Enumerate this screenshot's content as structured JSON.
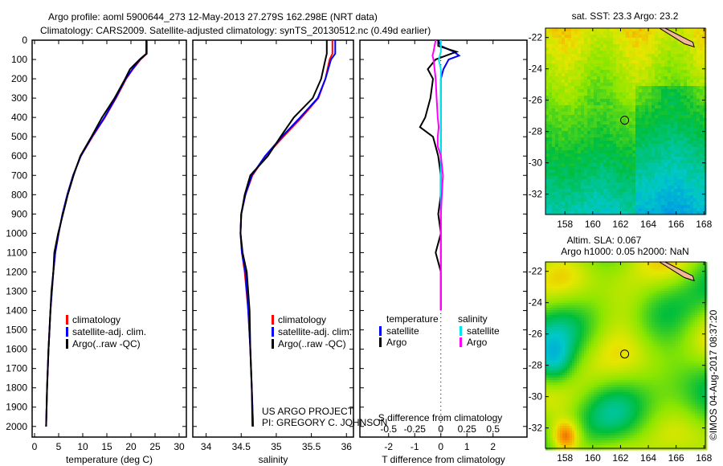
{
  "title": {
    "line1": "Argo profile: aoml 5900644_273 12-May-2013 27.279S 162.298E (NRT data)",
    "line2": "Climatology: CARS2009. Satellite-adjusted climatology: synTS_20130512.nc (0.49d earlier)"
  },
  "footer": {
    "project": "US ARGO PROJECT",
    "pi": "PI: GREGORY C. JOHNSON",
    "stamp": "©IMOS 04-Aug-2017 08:37:20"
  },
  "colors": {
    "climatology": "#ff0000",
    "satellite": "#0000ff",
    "argo": "#000000",
    "sal_satellite": "#00e5ee",
    "sal_argo": "#ff00ff"
  },
  "chart_data": [
    {
      "type": "line",
      "id": "temperature",
      "xlabel": "temperature (deg C)",
      "xlim": [
        -0.5,
        31.5
      ],
      "ylim": [
        2055,
        0
      ],
      "xticks": [
        0,
        5,
        10,
        15,
        20,
        25,
        30
      ],
      "yticks": [
        0,
        100,
        200,
        300,
        400,
        500,
        600,
        700,
        800,
        900,
        1000,
        1100,
        1200,
        1300,
        1400,
        1500,
        1600,
        1700,
        1800,
        1900,
        2000
      ],
      "legend": [
        "climatology",
        "satellite-adj. clim.",
        "Argo(..raw -QC)"
      ],
      "depth": [
        0,
        70,
        100,
        150,
        200,
        300,
        400,
        500,
        600,
        700,
        800,
        900,
        1000,
        1100,
        1200,
        1300,
        1400,
        1600,
        1800,
        2000
      ],
      "series": [
        {
          "name": "climatology",
          "values": [
            23.3,
            23.3,
            22.0,
            20.4,
            19.0,
            16.9,
            14.6,
            12.0,
            9.6,
            8.0,
            6.8,
            5.8,
            5.0,
            4.3,
            3.9,
            3.6,
            3.3,
            2.9,
            2.6,
            2.4
          ]
        },
        {
          "name": "satellite-adj. clim.",
          "values": [
            23.2,
            23.2,
            21.9,
            20.3,
            18.9,
            16.8,
            14.5,
            11.9,
            9.6,
            8.0,
            6.8,
            5.8,
            5.0,
            4.3,
            3.9,
            3.6,
            3.3,
            2.9,
            2.6,
            2.4
          ]
        },
        {
          "name": "Argo(..raw -QC)",
          "values": [
            23.2,
            23.2,
            21.8,
            19.8,
            18.8,
            16.6,
            14.0,
            11.8,
            9.5,
            8.1,
            6.9,
            5.9,
            4.9,
            4.1,
            3.9,
            3.5,
            3.3,
            2.9,
            2.6,
            2.4
          ]
        }
      ]
    },
    {
      "type": "line",
      "id": "salinity",
      "xlabel": "salinity",
      "xlim": [
        33.81,
        36.1
      ],
      "ylim": [
        2055,
        0
      ],
      "xticks": [
        34,
        34.5,
        35,
        35.5,
        36
      ],
      "legend": [
        "climatology",
        "satellite-adj. clim.",
        "Argo(..raw -QC)"
      ],
      "depth": [
        0,
        70,
        100,
        200,
        300,
        400,
        500,
        600,
        700,
        800,
        900,
        1000,
        1100,
        1200,
        1400,
        1600,
        1800,
        2000
      ],
      "series": [
        {
          "name": "climatology",
          "values": [
            35.8,
            35.8,
            35.76,
            35.7,
            35.6,
            35.36,
            35.1,
            34.85,
            34.66,
            34.56,
            34.5,
            34.49,
            34.51,
            34.55,
            34.6,
            34.63,
            34.65,
            34.67
          ]
        },
        {
          "name": "satellite-adj. clim.",
          "values": [
            35.84,
            35.84,
            35.78,
            35.7,
            35.59,
            35.34,
            35.08,
            34.84,
            34.65,
            34.56,
            34.5,
            34.49,
            34.51,
            34.56,
            34.6,
            34.63,
            34.65,
            34.67
          ]
        },
        {
          "name": "Argo(..raw -QC)",
          "values": [
            35.72,
            35.72,
            35.7,
            35.64,
            35.52,
            35.25,
            35.06,
            34.88,
            34.63,
            34.55,
            34.5,
            34.49,
            34.52,
            34.58,
            34.62,
            34.63,
            34.65,
            34.66
          ]
        }
      ]
    },
    {
      "type": "line",
      "id": "difference",
      "xlabel": "T difference from climatology",
      "x2label": "S difference from climatology",
      "xlim": [
        -3.1,
        3.3
      ],
      "ylim": [
        2055,
        0
      ],
      "xticks": [
        -2,
        -1,
        0,
        1,
        2
      ],
      "x2ticks": [
        "-0.5",
        "-0.25",
        "0",
        "0.25",
        "0.5"
      ],
      "legend": {
        "temperature": "temperature",
        "salinity": "salinity",
        "satellite": "satellite",
        "argo": "Argo"
      },
      "depth": [
        0,
        30,
        60,
        80,
        100,
        150,
        200,
        300,
        400,
        450,
        500,
        550,
        600,
        700,
        800,
        900,
        1000,
        1100,
        1200,
        1300,
        1400
      ],
      "series": [
        {
          "name": "T satellite",
          "values": [
            -0.1,
            0.0,
            0.5,
            0.7,
            0.3,
            0.1,
            0.0,
            0.0,
            0.0,
            0.0,
            0.0,
            0.0,
            0.0,
            0.0,
            0.0,
            0.0,
            0.0,
            0.0,
            0.0,
            0.0,
            0.0
          ]
        },
        {
          "name": "T Argo",
          "values": [
            -0.1,
            -0.1,
            0.6,
            0.2,
            -0.2,
            -0.5,
            -0.3,
            -0.4,
            -0.6,
            -0.8,
            -0.3,
            -0.2,
            -0.1,
            0.0,
            0.0,
            -0.1,
            0.0,
            -0.2,
            0.0,
            0.0,
            0.0
          ]
        },
        {
          "name": "S satellite",
          "values": [
            0.0,
            0.0,
            0.0,
            -0.01,
            -0.02,
            0.0,
            0.0,
            0.0,
            0.0,
            0.0,
            0.0,
            0.0,
            0.0,
            0.0,
            0.0,
            0.0,
            0.0,
            0.0,
            0.0,
            0.0,
            0.0
          ]
        },
        {
          "name": "S Argo",
          "values": [
            -0.05,
            -0.06,
            -0.07,
            -0.08,
            -0.07,
            -0.06,
            -0.05,
            -0.04,
            -0.03,
            -0.02,
            -0.03,
            -0.03,
            0.0,
            0.02,
            0.01,
            0.0,
            0.0,
            0.0,
            0.0,
            0.0,
            0.0
          ]
        }
      ]
    },
    {
      "type": "heatmap",
      "id": "sst-map",
      "title": "sat. SST: 23.3 Argo: 23.2",
      "xlim": [
        156.6,
        168.1
      ],
      "ylim": [
        -33.3,
        -21.4
      ],
      "xticks": [
        158,
        160,
        162,
        164,
        166,
        168
      ],
      "yticks": [
        -22,
        -24,
        -26,
        -28,
        -30,
        -32
      ],
      "float_position": [
        162.298,
        -27.279
      ]
    },
    {
      "type": "heatmap",
      "id": "sla-map",
      "title": "Altim. SLA: 0.067",
      "subtitle": "Argo h1000: 0.05 h2000: NaN",
      "xlim": [
        156.6,
        168.1
      ],
      "ylim": [
        -33.3,
        -21.4
      ],
      "xticks": [
        158,
        160,
        162,
        164,
        166,
        168
      ],
      "yticks": [
        -22,
        -24,
        -26,
        -28,
        -30,
        -32
      ],
      "float_position": [
        162.298,
        -27.279
      ]
    }
  ]
}
